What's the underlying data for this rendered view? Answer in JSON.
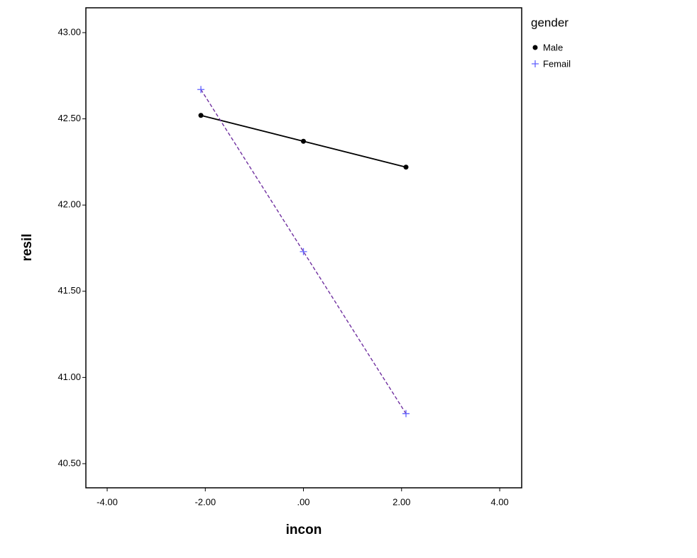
{
  "chart_data": {
    "type": "line",
    "x_label": "incon",
    "y_label": "resil",
    "legend_title": "gender",
    "xlim": [
      -4.434,
      4.448
    ],
    "ylim": [
      40.36,
      43.144
    ],
    "xticks": [
      {
        "value": -4,
        "label": "-4.00"
      },
      {
        "value": -2,
        "label": "-2.00"
      },
      {
        "value": 0,
        "label": ".00"
      },
      {
        "value": 2,
        "label": "2.00"
      },
      {
        "value": 4,
        "label": "4.00"
      }
    ],
    "yticks": [
      {
        "value": 40.5,
        "label": "40.50"
      },
      {
        "value": 41,
        "label": "41.00"
      },
      {
        "value": 41.5,
        "label": "41.50"
      },
      {
        "value": 42,
        "label": "42.00"
      },
      {
        "value": 42.5,
        "label": "42.50"
      },
      {
        "value": 43,
        "label": "43.00"
      }
    ],
    "series": [
      {
        "name": "Male",
        "color": "#000000",
        "marker_color": "#000000",
        "marker": "circle",
        "dashed": false,
        "x": [
          -2.09,
          0,
          2.09
        ],
        "values": [
          42.52,
          42.37,
          42.22
        ]
      },
      {
        "name": "Femail",
        "color": "#7030a0",
        "marker_color": "#6060ff",
        "marker": "plus",
        "dashed": true,
        "x": [
          -2.09,
          0,
          2.09
        ],
        "values": [
          42.67,
          41.73,
          40.79
        ]
      }
    ]
  }
}
